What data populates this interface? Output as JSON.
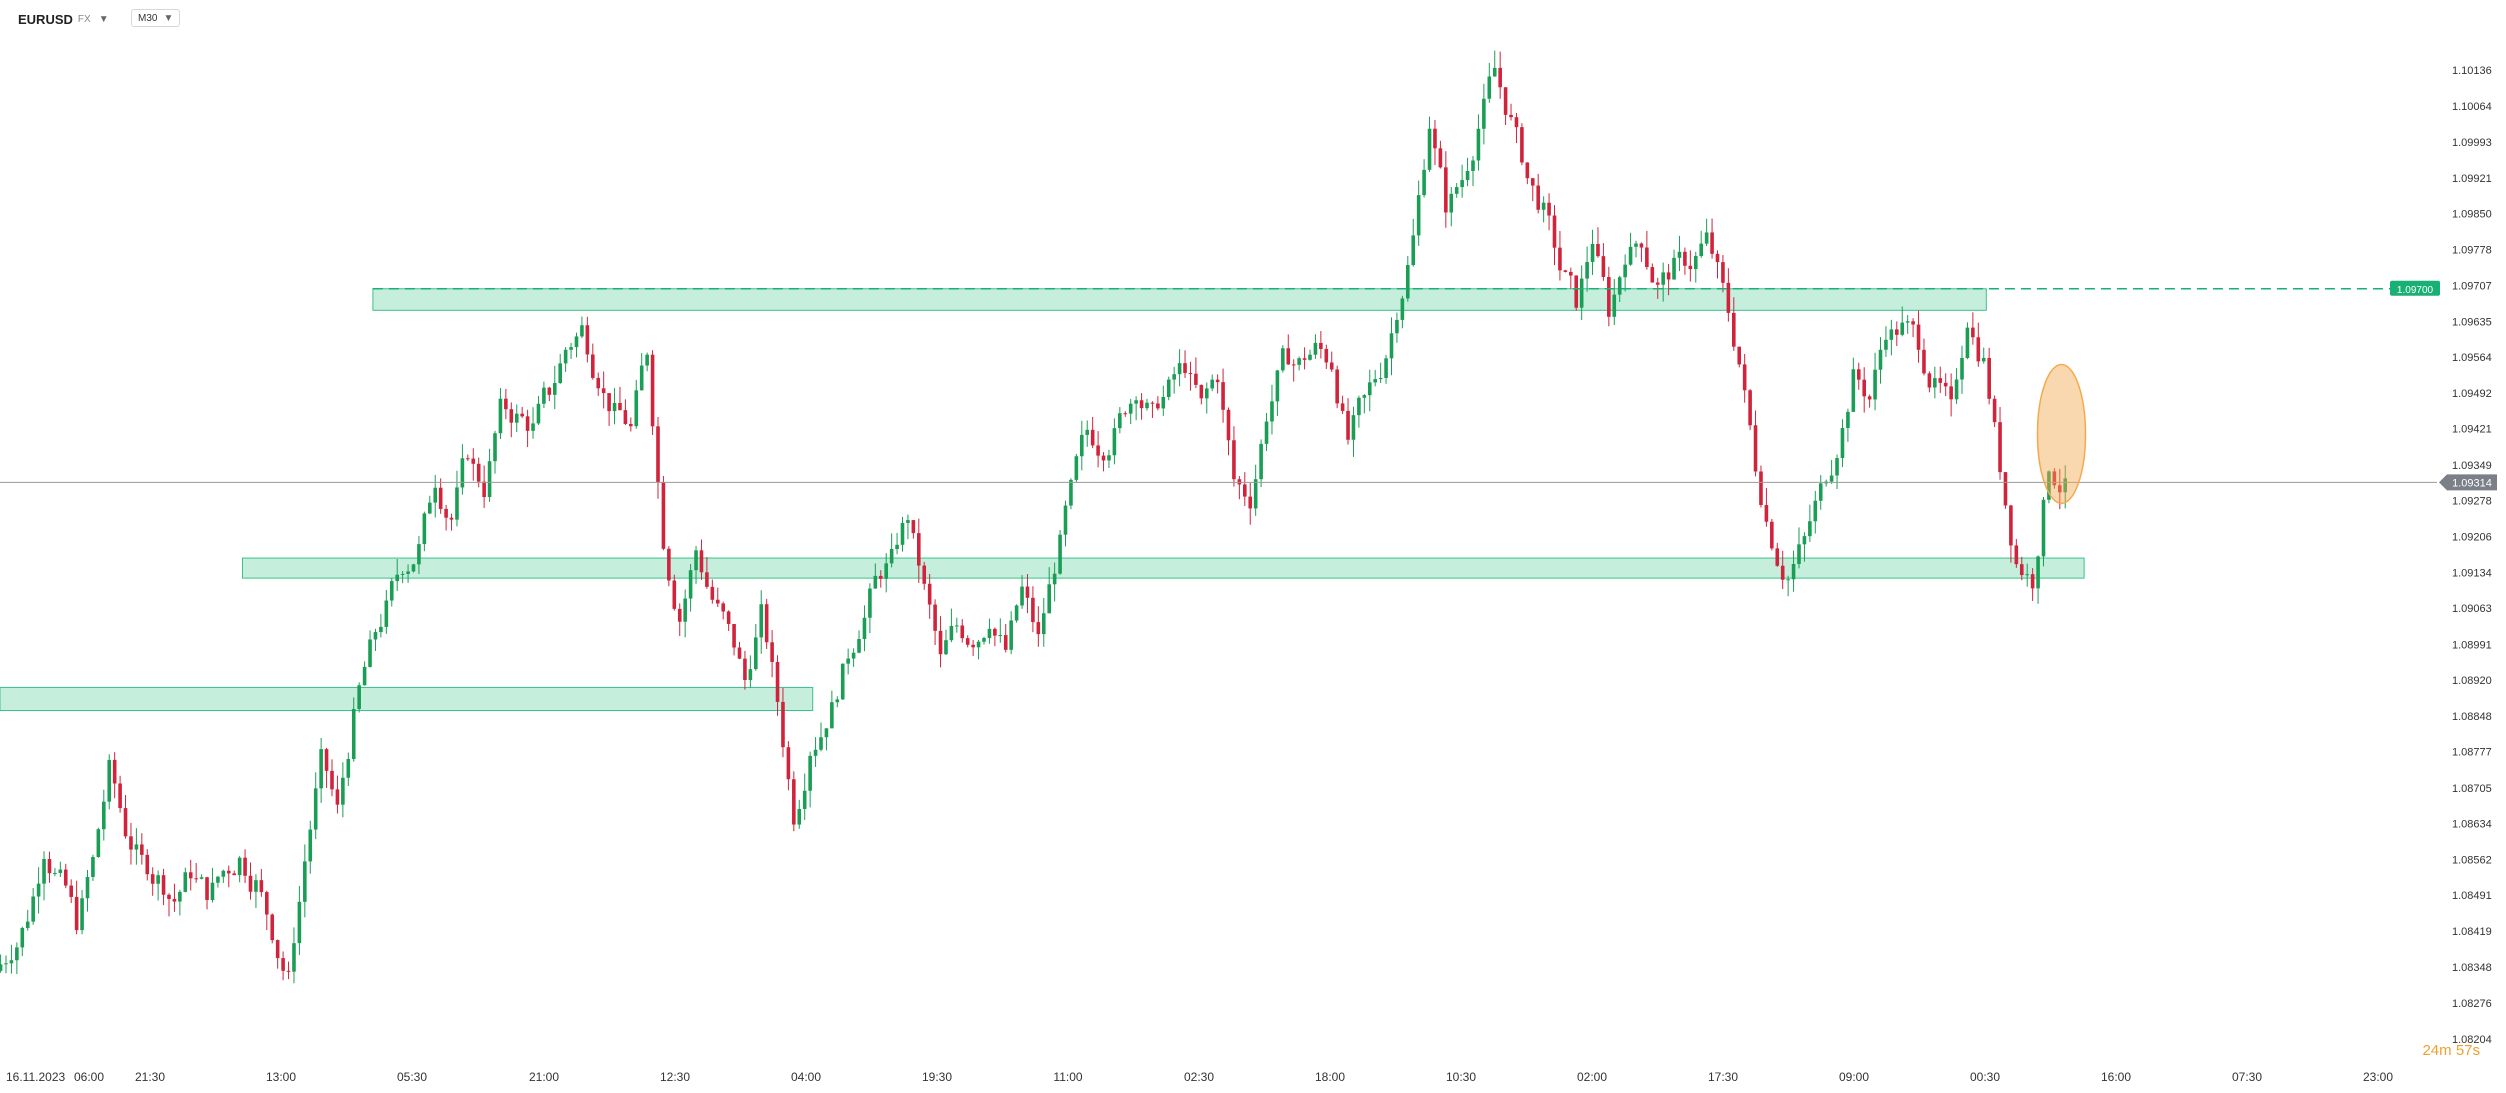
{
  "toolbar": {
    "symbol": "EURUSD",
    "symbol_suffix": "FX",
    "timeframe": "M30"
  },
  "timer": {
    "minutes": "24",
    "minutes_unit": "m",
    "seconds": "57",
    "seconds_unit": "s"
  },
  "chart_data": {
    "type": "candlestick",
    "ylim": [
      1.08204,
      1.10208
    ],
    "y_ticks": [
      "1.10136",
      "1.10064",
      "1.09993",
      "1.09921",
      "1.09850",
      "1.09778",
      "1.09707",
      "1.09635",
      "1.09564",
      "1.09492",
      "1.09421",
      "1.09349",
      "1.09278",
      "1.09206",
      "1.09134",
      "1.09063",
      "1.08991",
      "1.08920",
      "1.08848",
      "1.08777",
      "1.08705",
      "1.08634",
      "1.08562",
      "1.08491",
      "1.08419",
      "1.08348",
      "1.08276",
      "1.08204"
    ],
    "x_ticks": [
      "16.11.2023",
      "06:00",
      "21:30",
      "13:00",
      "05:30",
      "21:00",
      "12:30",
      "04:00",
      "19:30",
      "11:00",
      "02:30",
      "18:00",
      "10:30",
      "02:00",
      "17:30",
      "09:00",
      "00:30",
      "16:00",
      "07:30",
      "23:00"
    ],
    "current_price": "1.09314",
    "level_line": "1.09700",
    "grid": false,
    "colors": {
      "up": "#1a9e55",
      "down": "#d0243c",
      "zone_fill": "#c4eedb",
      "zone_stroke": "#2fbf85",
      "level": "#18b074",
      "current_badge": "#7b7f88",
      "highlight": "#f5a94e"
    },
    "zones": [
      {
        "from_index": 0,
        "to_index": 49,
        "low": 1.08859,
        "high": 1.08905
      },
      {
        "from_index": 15,
        "to_index": 127,
        "low": 1.09123,
        "high": 1.09163
      },
      {
        "from_index": 23,
        "to_index": 121,
        "low": 1.09657,
        "high": 1.097
      }
    ],
    "highlight": {
      "index": 125,
      "low": 1.09272,
      "high": 1.09549
    },
    "closes": [
      1.0838,
      1.0845,
      1.0858,
      1.0852,
      1.0844,
      1.0856,
      1.0874,
      1.0862,
      1.0856,
      1.0852,
      1.0848,
      1.0854,
      1.085,
      1.0854,
      1.0856,
      1.0851,
      1.0842,
      1.0832,
      1.0856,
      1.0876,
      1.0866,
      1.0884,
      1.0898,
      1.0906,
      1.0915,
      1.0918,
      1.0932,
      1.0924,
      1.0938,
      1.093,
      1.0946,
      1.0944,
      1.0942,
      1.095,
      1.0958,
      1.0962,
      1.0952,
      1.0945,
      1.0942,
      1.0958,
      1.092,
      1.0904,
      1.0918,
      1.0908,
      1.0902,
      1.0892,
      1.0905,
      1.0888,
      1.0865,
      1.0878,
      1.0884,
      1.0893,
      1.0902,
      1.0912,
      1.0916,
      1.0925,
      1.091,
      1.0896,
      1.0903,
      1.09,
      1.0904,
      1.0898,
      1.091,
      1.09,
      1.0915,
      1.093,
      1.0942,
      1.0938,
      1.0944,
      1.095,
      1.0945,
      1.095,
      1.0955,
      1.0947,
      1.0953,
      1.0932,
      1.0928,
      1.0945,
      1.0956,
      1.0955,
      1.0958,
      1.0955,
      1.094,
      1.0948,
      1.0954,
      1.0966,
      1.098,
      1.1003,
      1.0987,
      1.0992,
      1.1002,
      1.1014,
      1.1003,
      1.0992,
      1.0985,
      1.0974,
      1.0968,
      1.098,
      1.0966,
      1.0977,
      1.098,
      1.097,
      1.0974,
      1.0975,
      1.098,
      1.097,
      1.0955,
      1.0935,
      1.092,
      1.0912,
      1.092,
      1.093,
      1.0938,
      1.0952,
      1.0948,
      1.0962,
      1.0962,
      1.096,
      1.095,
      1.0946,
      1.0964,
      1.0955,
      1.0935,
      1.0915,
      1.0912,
      1.0935,
      1.093
    ]
  }
}
